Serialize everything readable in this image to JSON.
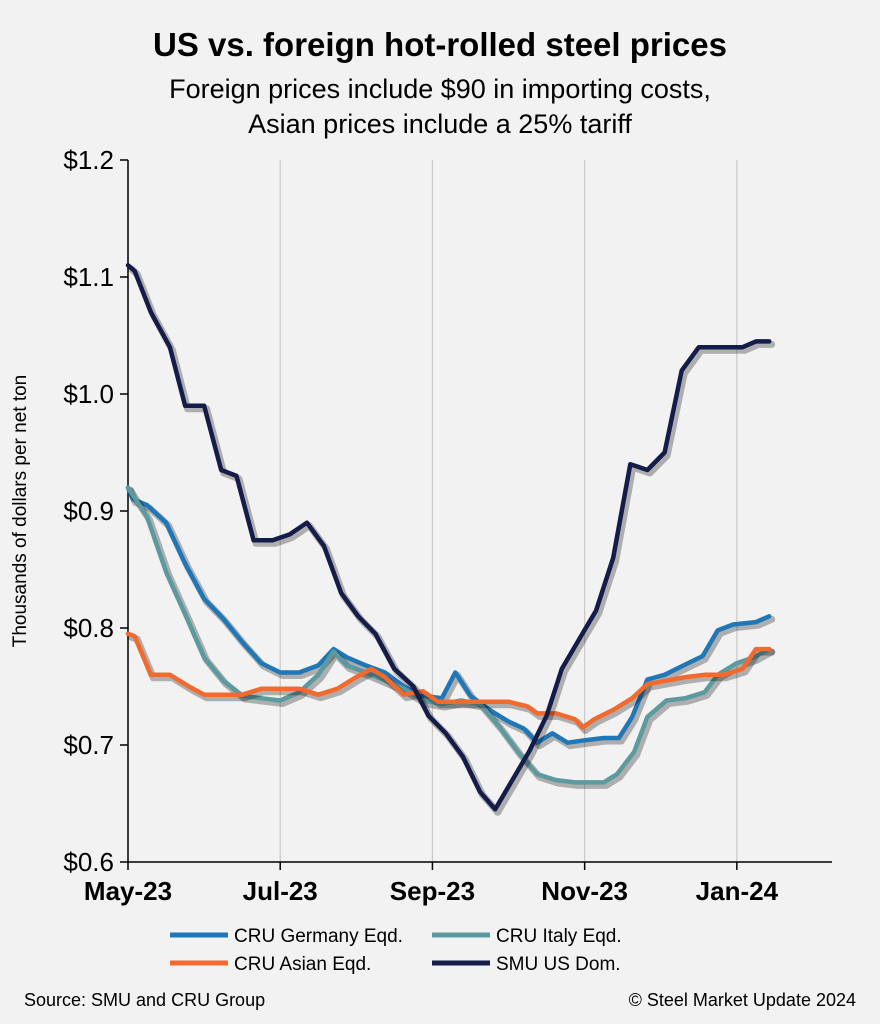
{
  "chart_data": {
    "type": "line",
    "title": "US vs. foreign hot-rolled steel prices",
    "subtitle_lines": [
      "Foreign prices include $90 in importing costs,",
      "Asian prices include a 25% tariff"
    ],
    "ylabel": "Thousands of dollars per net ton",
    "xlabel": "",
    "ylim": [
      0.6,
      1.2
    ],
    "y_ticks": [
      {
        "value": 0.6,
        "label": "$0.6"
      },
      {
        "value": 0.7,
        "label": "$0.7"
      },
      {
        "value": 0.8,
        "label": "$0.8"
      },
      {
        "value": 0.9,
        "label": "$0.9"
      },
      {
        "value": 1.0,
        "label": "$1.0"
      },
      {
        "value": 1.1,
        "label": "$1.1"
      },
      {
        "value": 1.2,
        "label": "$1.2"
      }
    ],
    "x_range": [
      0,
      37
    ],
    "x_ticks": [
      {
        "value": 0,
        "label": "May-23"
      },
      {
        "value": 8,
        "label": "Jul-23"
      },
      {
        "value": 16,
        "label": "Sep-23"
      },
      {
        "value": 24,
        "label": "Nov-23"
      },
      {
        "value": 32,
        "label": "Jan-24"
      }
    ],
    "grid": "vertical",
    "legend_position": "bottom",
    "series": [
      {
        "name": "CRU Germany Eqd.",
        "color": "#1f77b8",
        "values": [
          [
            0,
            0.92
          ],
          [
            0.25,
            0.91
          ],
          [
            1,
            0.905
          ],
          [
            2,
            0.89
          ],
          [
            3,
            0.855
          ],
          [
            4,
            0.825
          ],
          [
            5,
            0.808
          ],
          [
            6,
            0.788
          ],
          [
            7,
            0.77
          ],
          [
            8,
            0.762
          ],
          [
            9,
            0.762
          ],
          [
            10,
            0.768
          ],
          [
            10.8,
            0.782
          ],
          [
            11.5,
            0.775
          ],
          [
            12.5,
            0.768
          ],
          [
            13.5,
            0.762
          ],
          [
            14.5,
            0.75
          ],
          [
            15.5,
            0.742
          ],
          [
            16.5,
            0.74
          ],
          [
            17.2,
            0.762
          ],
          [
            18,
            0.742
          ],
          [
            19,
            0.73
          ],
          [
            20,
            0.72
          ],
          [
            20.8,
            0.714
          ],
          [
            21.5,
            0.702
          ],
          [
            22.3,
            0.71
          ],
          [
            23.1,
            0.702
          ],
          [
            24,
            0.704
          ],
          [
            25,
            0.706
          ],
          [
            25.8,
            0.706
          ],
          [
            26.5,
            0.724
          ],
          [
            27.3,
            0.756
          ],
          [
            28.2,
            0.76
          ],
          [
            29.2,
            0.768
          ],
          [
            30.2,
            0.776
          ],
          [
            31,
            0.798
          ],
          [
            31.8,
            0.803
          ],
          [
            33,
            0.805
          ],
          [
            33.7,
            0.81
          ]
        ]
      },
      {
        "name": "CRU Italy Eqd.",
        "color": "#5b9a9e",
        "values": [
          [
            0,
            0.92
          ],
          [
            1,
            0.895
          ],
          [
            2,
            0.848
          ],
          [
            3,
            0.812
          ],
          [
            4,
            0.775
          ],
          [
            5,
            0.755
          ],
          [
            6,
            0.742
          ],
          [
            7,
            0.74
          ],
          [
            8,
            0.738
          ],
          [
            9,
            0.745
          ],
          [
            10,
            0.76
          ],
          [
            10.8,
            0.78
          ],
          [
            11.5,
            0.768
          ],
          [
            12.5,
            0.762
          ],
          [
            13.5,
            0.755
          ],
          [
            14.5,
            0.748
          ],
          [
            15.5,
            0.738
          ],
          [
            16.5,
            0.735
          ],
          [
            17.5,
            0.738
          ],
          [
            18.5,
            0.735
          ],
          [
            19.5,
            0.716
          ],
          [
            20.5,
            0.694
          ],
          [
            21.5,
            0.675
          ],
          [
            22.5,
            0.67
          ],
          [
            23.5,
            0.668
          ],
          [
            24,
            0.668
          ],
          [
            25,
            0.668
          ],
          [
            25.7,
            0.675
          ],
          [
            26.6,
            0.694
          ],
          [
            27.3,
            0.724
          ],
          [
            28.3,
            0.738
          ],
          [
            29.3,
            0.74
          ],
          [
            30.3,
            0.745
          ],
          [
            31,
            0.76
          ],
          [
            32,
            0.77
          ],
          [
            32.9,
            0.775
          ],
          [
            33.7,
            0.782
          ]
        ]
      },
      {
        "name": "CRU Asian Eqd.",
        "color": "#f26a2e",
        "values": [
          [
            0,
            0.795
          ],
          [
            0.35,
            0.793
          ],
          [
            1.2,
            0.76
          ],
          [
            2.2,
            0.76
          ],
          [
            3.2,
            0.75
          ],
          [
            4,
            0.743
          ],
          [
            5,
            0.743
          ],
          [
            6,
            0.743
          ],
          [
            7,
            0.748
          ],
          [
            8,
            0.748
          ],
          [
            9,
            0.748
          ],
          [
            10,
            0.743
          ],
          [
            11,
            0.748
          ],
          [
            12,
            0.758
          ],
          [
            12.8,
            0.765
          ],
          [
            13.5,
            0.758
          ],
          [
            14.5,
            0.743
          ],
          [
            15.5,
            0.746
          ],
          [
            16.3,
            0.737
          ],
          [
            17.2,
            0.737
          ],
          [
            18,
            0.737
          ],
          [
            19,
            0.737
          ],
          [
            20,
            0.737
          ],
          [
            21,
            0.733
          ],
          [
            21.5,
            0.727
          ],
          [
            22.5,
            0.727
          ],
          [
            23.5,
            0.722
          ],
          [
            23.9,
            0.715
          ],
          [
            24.5,
            0.722
          ],
          [
            25.5,
            0.73
          ],
          [
            26.5,
            0.74
          ],
          [
            27.3,
            0.752
          ],
          [
            28.3,
            0.755
          ],
          [
            29.3,
            0.758
          ],
          [
            30.3,
            0.76
          ],
          [
            31.3,
            0.76
          ],
          [
            32.3,
            0.765
          ],
          [
            33,
            0.782
          ],
          [
            33.7,
            0.782
          ]
        ]
      },
      {
        "name": "SMU US Dom.",
        "color": "#141c4a",
        "values": [
          [
            0,
            1.11
          ],
          [
            0.35,
            1.105
          ],
          [
            1.2,
            1.07
          ],
          [
            2.2,
            1.04
          ],
          [
            3,
            0.99
          ],
          [
            4,
            0.99
          ],
          [
            4.9,
            0.935
          ],
          [
            5.7,
            0.93
          ],
          [
            6.6,
            0.875
          ],
          [
            7.6,
            0.875
          ],
          [
            8.5,
            0.88
          ],
          [
            9.4,
            0.89
          ],
          [
            10.3,
            0.87
          ],
          [
            11.2,
            0.83
          ],
          [
            12.1,
            0.81
          ],
          [
            13,
            0.795
          ],
          [
            14,
            0.765
          ],
          [
            15,
            0.75
          ],
          [
            15.8,
            0.725
          ],
          [
            16.7,
            0.71
          ],
          [
            17.6,
            0.69
          ],
          [
            18.5,
            0.66
          ],
          [
            19.3,
            0.645
          ],
          [
            20.2,
            0.67
          ],
          [
            21.1,
            0.695
          ],
          [
            22,
            0.725
          ],
          [
            22.8,
            0.765
          ],
          [
            23.7,
            0.79
          ],
          [
            24.6,
            0.815
          ],
          [
            25.5,
            0.86
          ],
          [
            26.4,
            0.94
          ],
          [
            27.3,
            0.935
          ],
          [
            28.2,
            0.95
          ],
          [
            29.1,
            1.02
          ],
          [
            30,
            1.04
          ],
          [
            31.2,
            1.04
          ],
          [
            32.3,
            1.04
          ],
          [
            33,
            1.045
          ],
          [
            33.7,
            1.045
          ]
        ]
      }
    ]
  },
  "footer": {
    "source": "Source: SMU and CRU Group",
    "copyright": "© Steel Market Update 2024"
  }
}
